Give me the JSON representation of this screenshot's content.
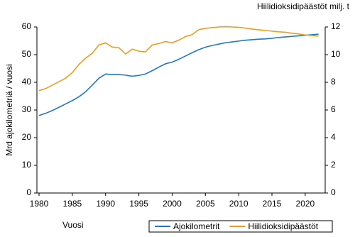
{
  "chart_data": {
    "type": "line",
    "y_label": "Mrd ajokilometriä / vuosi",
    "y2_label": "Hiilidioksidipäästöt milj. t",
    "x_label": "Vuosi",
    "x": [
      1980,
      1981,
      1982,
      1983,
      1984,
      1985,
      1986,
      1987,
      1988,
      1989,
      1990,
      1991,
      1992,
      1993,
      1994,
      1995,
      1996,
      1997,
      1998,
      1999,
      2000,
      2001,
      2002,
      2003,
      2004,
      2005,
      2006,
      2007,
      2008,
      2009,
      2010,
      2011,
      2012,
      2013,
      2014,
      2015,
      2016,
      2017,
      2018,
      2019,
      2020,
      2021,
      2022
    ],
    "series": [
      {
        "name": "Ajokilometrit",
        "color": "#1f78c8",
        "axis": "y",
        "values": [
          28,
          28.8,
          29.8,
          31,
          32.2,
          33.4,
          34.8,
          36.6,
          39,
          41.5,
          43,
          42.8,
          42.8,
          42.6,
          42.2,
          42.5,
          43,
          44.2,
          45.5,
          46.7,
          47.3,
          48.3,
          49.5,
          50.7,
          51.8,
          52.7,
          53.3,
          53.8,
          54.3,
          54.6,
          54.9,
          55.2,
          55.4,
          55.6,
          55.7,
          55.9,
          56.2,
          56.4,
          56.6,
          56.8,
          57,
          57.2,
          57.4
        ]
      },
      {
        "name": "Hiilidioksidipäästöt",
        "color": "#f39a1e",
        "axis": "y2",
        "values": [
          7.4,
          7.55,
          7.8,
          8.05,
          8.3,
          8.7,
          9.3,
          9.75,
          10.1,
          10.7,
          10.85,
          10.55,
          10.5,
          10.05,
          10.4,
          10.25,
          10.2,
          10.7,
          10.8,
          10.95,
          10.85,
          11.05,
          11.3,
          11.45,
          11.8,
          11.9,
          11.95,
          12,
          12.02,
          12,
          11.98,
          11.92,
          11.85,
          11.8,
          11.75,
          11.7,
          11.65,
          11.62,
          11.55,
          11.5,
          11.42,
          11.38,
          11.35
        ]
      }
    ],
    "xlim": [
      1980,
      2023
    ],
    "xticks": [
      1980,
      1985,
      1990,
      1995,
      2000,
      2005,
      2010,
      2015,
      2020
    ],
    "ylim": [
      0,
      60
    ],
    "yticks": [
      0,
      10,
      20,
      30,
      40,
      50,
      60
    ],
    "y2lim": [
      0,
      12
    ],
    "y2ticks": [
      0,
      2,
      4,
      6,
      8,
      10,
      12
    ],
    "grid": false,
    "legend": "bottom-right"
  }
}
